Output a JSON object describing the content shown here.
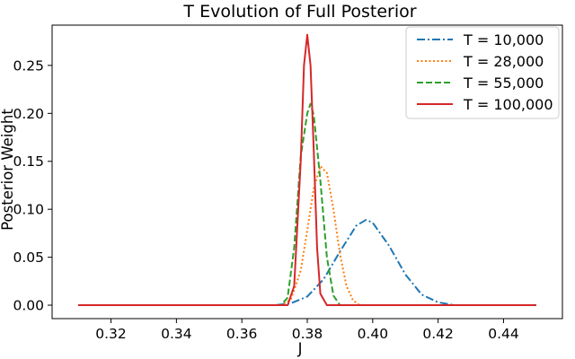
{
  "chart_data": {
    "type": "line",
    "title": "T Evolution of Full Posterior",
    "xlabel": "J",
    "ylabel": "Posterior Weight",
    "xlim": [
      0.302,
      0.458
    ],
    "ylim": [
      -0.014,
      0.292
    ],
    "xticks": [
      0.32,
      0.34,
      0.36,
      0.38,
      0.4,
      0.42,
      0.44
    ],
    "xtick_labels": [
      "0.32",
      "0.34",
      "0.36",
      "0.38",
      "0.40",
      "0.42",
      "0.44"
    ],
    "yticks": [
      0.0,
      0.05,
      0.1,
      0.15,
      0.2,
      0.25
    ],
    "ytick_labels": [
      "0.00",
      "0.05",
      "0.10",
      "0.15",
      "0.20",
      "0.25"
    ],
    "grid": false,
    "legend_position": "top-right",
    "series": [
      {
        "name": "T = 10,000",
        "color": "#1f77b4",
        "style": "dashdot",
        "x": [
          0.31,
          0.37,
          0.375,
          0.38,
          0.385,
          0.39,
          0.395,
          0.398,
          0.4,
          0.405,
          0.41,
          0.415,
          0.42,
          0.425,
          0.43,
          0.45
        ],
        "y": [
          0.0,
          0.0,
          0.002,
          0.009,
          0.027,
          0.056,
          0.083,
          0.089,
          0.086,
          0.062,
          0.032,
          0.011,
          0.003,
          0.0,
          0.0,
          0.0
        ]
      },
      {
        "name": "T = 28,000",
        "color": "#ff7f0e",
        "style": "dotted",
        "x": [
          0.31,
          0.372,
          0.375,
          0.378,
          0.38,
          0.382,
          0.384,
          0.386,
          0.388,
          0.39,
          0.392,
          0.394,
          0.396,
          0.45
        ],
        "y": [
          0.0,
          0.0,
          0.006,
          0.036,
          0.078,
          0.122,
          0.145,
          0.138,
          0.1,
          0.053,
          0.02,
          0.005,
          0.0,
          0.0
        ]
      },
      {
        "name": "T = 55,000",
        "color": "#2ca02c",
        "style": "dashed",
        "x": [
          0.31,
          0.372,
          0.374,
          0.376,
          0.378,
          0.38,
          0.381,
          0.382,
          0.384,
          0.386,
          0.388,
          0.39,
          0.45
        ],
        "y": [
          0.0,
          0.0,
          0.008,
          0.06,
          0.155,
          0.2,
          0.21,
          0.198,
          0.13,
          0.05,
          0.01,
          0.0,
          0.0
        ]
      },
      {
        "name": "T = 100,000",
        "color": "#d62728",
        "style": "solid",
        "x": [
          0.31,
          0.374,
          0.376,
          0.378,
          0.379,
          0.38,
          0.381,
          0.382,
          0.383,
          0.384,
          0.386,
          0.45
        ],
        "y": [
          0.0,
          0.0,
          0.02,
          0.15,
          0.25,
          0.282,
          0.25,
          0.16,
          0.06,
          0.012,
          0.0,
          0.0
        ]
      }
    ]
  }
}
